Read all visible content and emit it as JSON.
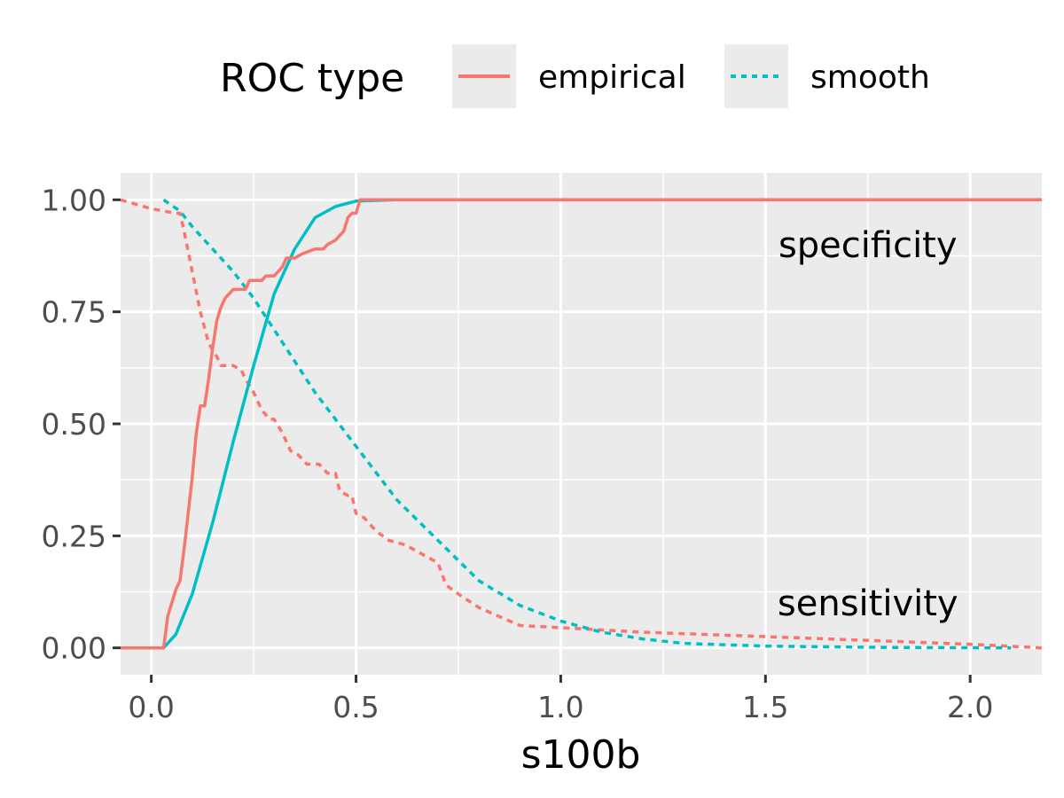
{
  "legend": {
    "title": "ROC type",
    "items": [
      {
        "label": "empirical",
        "color": "#F8766D",
        "dash": "solid"
      },
      {
        "label": "smooth",
        "color": "#00BFC4",
        "dash": "dotted"
      }
    ]
  },
  "chart_data": {
    "type": "line",
    "xlabel": "s100b",
    "ylabel": "",
    "xlim": [
      -0.075,
      2.175
    ],
    "ylim": [
      -0.06,
      1.06
    ],
    "x_ticks": [
      0.0,
      0.5,
      1.0,
      1.5,
      2.0
    ],
    "x_tick_labels": [
      "0.0",
      "0.5",
      "1.0",
      "1.5",
      "2.0"
    ],
    "y_ticks": [
      0.0,
      0.25,
      0.5,
      0.75,
      1.0
    ],
    "y_tick_labels": [
      "0.00",
      "0.25",
      "0.50",
      "0.75",
      "1.00"
    ],
    "grid": true,
    "legend_position": "top",
    "annotations": [
      {
        "text": "specificity",
        "x": 1.75,
        "y": 0.9
      },
      {
        "text": "sensitivity",
        "x": 1.75,
        "y": 0.1
      }
    ],
    "series": [
      {
        "name": "empirical",
        "measure": "specificity",
        "color": "#F8766D",
        "dash": "solid",
        "points": [
          [
            -0.075,
            0.0
          ],
          [
            0.03,
            0.0
          ],
          [
            0.04,
            0.07
          ],
          [
            0.05,
            0.1
          ],
          [
            0.06,
            0.13
          ],
          [
            0.07,
            0.15
          ],
          [
            0.08,
            0.22
          ],
          [
            0.09,
            0.3
          ],
          [
            0.1,
            0.38
          ],
          [
            0.11,
            0.48
          ],
          [
            0.12,
            0.54
          ],
          [
            0.13,
            0.54
          ],
          [
            0.14,
            0.6
          ],
          [
            0.15,
            0.67
          ],
          [
            0.16,
            0.73
          ],
          [
            0.17,
            0.76
          ],
          [
            0.18,
            0.78
          ],
          [
            0.19,
            0.79
          ],
          [
            0.2,
            0.8
          ],
          [
            0.23,
            0.8
          ],
          [
            0.24,
            0.82
          ],
          [
            0.27,
            0.82
          ],
          [
            0.28,
            0.83
          ],
          [
            0.3,
            0.83
          ],
          [
            0.31,
            0.84
          ],
          [
            0.32,
            0.85
          ],
          [
            0.33,
            0.87
          ],
          [
            0.35,
            0.87
          ],
          [
            0.37,
            0.88
          ],
          [
            0.4,
            0.89
          ],
          [
            0.42,
            0.89
          ],
          [
            0.43,
            0.9
          ],
          [
            0.45,
            0.91
          ],
          [
            0.47,
            0.93
          ],
          [
            0.48,
            0.96
          ],
          [
            0.49,
            0.97
          ],
          [
            0.5,
            0.97
          ],
          [
            0.51,
            1.0
          ],
          [
            2.175,
            1.0
          ]
        ]
      },
      {
        "name": "empirical",
        "measure": "sensitivity",
        "color": "#F8766D",
        "dash": "dotted",
        "points": [
          [
            -0.075,
            1.0
          ],
          [
            0.0,
            0.98
          ],
          [
            0.06,
            0.97
          ],
          [
            0.07,
            0.97
          ],
          [
            0.08,
            0.93
          ],
          [
            0.1,
            0.84
          ],
          [
            0.12,
            0.75
          ],
          [
            0.14,
            0.68
          ],
          [
            0.16,
            0.65
          ],
          [
            0.17,
            0.63
          ],
          [
            0.2,
            0.63
          ],
          [
            0.22,
            0.62
          ],
          [
            0.23,
            0.6
          ],
          [
            0.25,
            0.57
          ],
          [
            0.27,
            0.53
          ],
          [
            0.29,
            0.51
          ],
          [
            0.3,
            0.51
          ],
          [
            0.32,
            0.48
          ],
          [
            0.34,
            0.44
          ],
          [
            0.36,
            0.43
          ],
          [
            0.38,
            0.41
          ],
          [
            0.41,
            0.41
          ],
          [
            0.43,
            0.39
          ],
          [
            0.45,
            0.39
          ],
          [
            0.46,
            0.35
          ],
          [
            0.48,
            0.34
          ],
          [
            0.49,
            0.34
          ],
          [
            0.5,
            0.3
          ],
          [
            0.52,
            0.29
          ],
          [
            0.55,
            0.26
          ],
          [
            0.58,
            0.24
          ],
          [
            0.62,
            0.23
          ],
          [
            0.66,
            0.21
          ],
          [
            0.7,
            0.19
          ],
          [
            0.72,
            0.14
          ],
          [
            0.75,
            0.12
          ],
          [
            0.8,
            0.09
          ],
          [
            0.85,
            0.07
          ],
          [
            0.9,
            0.05
          ],
          [
            1.0,
            0.045
          ],
          [
            1.2,
            0.035
          ],
          [
            1.5,
            0.025
          ],
          [
            1.8,
            0.015
          ],
          [
            2.0,
            0.008
          ],
          [
            2.175,
            0.0
          ]
        ]
      },
      {
        "name": "smooth",
        "measure": "specificity",
        "color": "#00BFC4",
        "dash": "solid",
        "points": [
          [
            0.03,
            0.0
          ],
          [
            0.06,
            0.03
          ],
          [
            0.1,
            0.12
          ],
          [
            0.15,
            0.28
          ],
          [
            0.2,
            0.46
          ],
          [
            0.25,
            0.63
          ],
          [
            0.3,
            0.79
          ],
          [
            0.35,
            0.89
          ],
          [
            0.4,
            0.96
          ],
          [
            0.45,
            0.985
          ],
          [
            0.5,
            0.997
          ],
          [
            0.6,
            1.0
          ],
          [
            2.175,
            1.0
          ]
        ]
      },
      {
        "name": "smooth",
        "measure": "sensitivity",
        "color": "#00BFC4",
        "dash": "dotted",
        "points": [
          [
            0.03,
            1.0
          ],
          [
            0.07,
            0.975
          ],
          [
            0.1,
            0.94
          ],
          [
            0.15,
            0.89
          ],
          [
            0.2,
            0.84
          ],
          [
            0.25,
            0.78
          ],
          [
            0.3,
            0.71
          ],
          [
            0.35,
            0.64
          ],
          [
            0.4,
            0.57
          ],
          [
            0.45,
            0.51
          ],
          [
            0.5,
            0.45
          ],
          [
            0.6,
            0.33
          ],
          [
            0.7,
            0.24
          ],
          [
            0.8,
            0.15
          ],
          [
            0.9,
            0.095
          ],
          [
            1.0,
            0.06
          ],
          [
            1.1,
            0.035
          ],
          [
            1.2,
            0.02
          ],
          [
            1.3,
            0.01
          ],
          [
            1.5,
            0.004
          ],
          [
            1.8,
            0.001
          ],
          [
            2.1,
            0.0
          ]
        ]
      }
    ]
  }
}
